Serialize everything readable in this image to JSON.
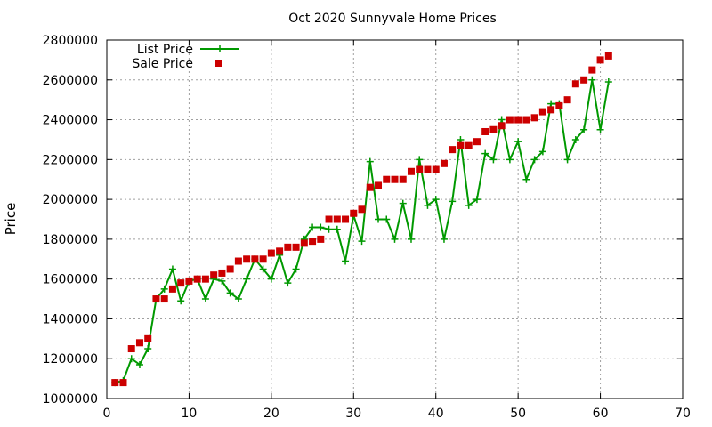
{
  "chart_data": {
    "type": "line",
    "title": "Oct 2020 Sunnyvale Home Prices",
    "xlabel": "",
    "ylabel": "Price",
    "xlim": [
      0,
      70
    ],
    "ylim": [
      1000000,
      2800000
    ],
    "x_ticks": [
      0,
      10,
      20,
      30,
      40,
      50,
      60,
      70
    ],
    "y_ticks": [
      1000000,
      1200000,
      1400000,
      1600000,
      1800000,
      2000000,
      2200000,
      2400000,
      2600000,
      2800000
    ],
    "grid": true,
    "legend_position": "top-left",
    "series": [
      {
        "name": "List Price",
        "style": "line-plus",
        "color": "#009900",
        "x": [
          1,
          2,
          3,
          4,
          5,
          6,
          7,
          8,
          9,
          10,
          11,
          12,
          13,
          14,
          15,
          16,
          17,
          18,
          19,
          20,
          21,
          22,
          23,
          24,
          25,
          26,
          27,
          28,
          29,
          30,
          31,
          32,
          33,
          34,
          35,
          36,
          37,
          38,
          39,
          40,
          41,
          42,
          43,
          44,
          45,
          46,
          47,
          48,
          49,
          50,
          51,
          52,
          53,
          54,
          55,
          56,
          57,
          58,
          59,
          60,
          61
        ],
        "values": [
          1080000,
          1090000,
          1200000,
          1170000,
          1250000,
          1500000,
          1550000,
          1650000,
          1490000,
          1590000,
          1600000,
          1500000,
          1600000,
          1590000,
          1530000,
          1500000,
          1600000,
          1700000,
          1650000,
          1600000,
          1720000,
          1580000,
          1650000,
          1800000,
          1860000,
          1860000,
          1850000,
          1850000,
          1690000,
          1920000,
          1790000,
          2190000,
          1900000,
          1900000,
          1800000,
          1980000,
          1800000,
          2200000,
          1970000,
          2000000,
          1800000,
          1990000,
          2300000,
          1970000,
          2000000,
          2230000,
          2200000,
          2400000,
          2200000,
          2290000,
          2100000,
          2200000,
          2240000,
          2480000,
          2480000,
          2200000,
          2300000,
          2350000,
          2600000,
          2350000,
          2590000
        ]
      },
      {
        "name": "Sale Price",
        "style": "square-markers",
        "color": "#cc0000",
        "x": [
          1,
          2,
          3,
          4,
          5,
          6,
          7,
          8,
          9,
          10,
          11,
          12,
          13,
          14,
          15,
          16,
          17,
          18,
          19,
          20,
          21,
          22,
          23,
          24,
          25,
          26,
          27,
          28,
          29,
          30,
          31,
          32,
          33,
          34,
          35,
          36,
          37,
          38,
          39,
          40,
          41,
          42,
          43,
          44,
          45,
          46,
          47,
          48,
          49,
          50,
          51,
          52,
          53,
          54,
          55,
          56,
          57,
          58,
          59,
          60,
          61
        ],
        "values": [
          1080000,
          1080000,
          1250000,
          1280000,
          1300000,
          1500000,
          1500000,
          1550000,
          1580000,
          1590000,
          1600000,
          1600000,
          1620000,
          1630000,
          1650000,
          1690000,
          1700000,
          1700000,
          1700000,
          1730000,
          1740000,
          1760000,
          1760000,
          1780000,
          1790000,
          1800000,
          1900000,
          1900000,
          1900000,
          1930000,
          1950000,
          2060000,
          2070000,
          2100000,
          2100000,
          2100000,
          2140000,
          2150000,
          2150000,
          2150000,
          2180000,
          2250000,
          2270000,
          2270000,
          2290000,
          2340000,
          2350000,
          2370000,
          2400000,
          2400000,
          2400000,
          2410000,
          2440000,
          2450000,
          2470000,
          2500000,
          2580000,
          2600000,
          2650000,
          2700000,
          2720000
        ]
      }
    ]
  }
}
